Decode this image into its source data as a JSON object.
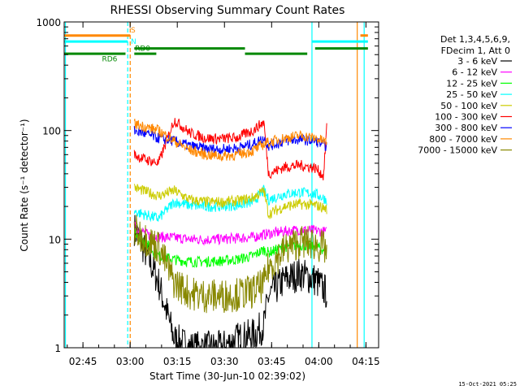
{
  "chart_data": {
    "type": "line",
    "title": "RHESSI Observing Summary Count Rates",
    "xlabel": "Start Time (30-Jun-10 02:39:02)",
    "ylabel": "Count Rate (s⁻¹ detector⁻¹)",
    "yscale": "log",
    "ylim": [
      1,
      1000
    ],
    "xlim_minutes": [
      0,
      100
    ],
    "x_ticks": [
      {
        "label": "02:45",
        "minute": 5.97
      },
      {
        "label": "03:00",
        "minute": 20.97
      },
      {
        "label": "03:15",
        "minute": 35.97
      },
      {
        "label": "03:30",
        "minute": 50.97
      },
      {
        "label": "03:45",
        "minute": 65.97
      },
      {
        "label": "04:00",
        "minute": 80.97
      },
      {
        "label": "04:15",
        "minute": 95.97
      }
    ],
    "y_ticks": [
      {
        "label": "1",
        "value": 1
      },
      {
        "label": "10",
        "value": 10
      },
      {
        "label": "100",
        "value": 100
      },
      {
        "label": "1000",
        "value": 1000
      }
    ],
    "legend": {
      "placement": "right",
      "header": [
        "Det 1,3,4,5,6,9,",
        "FDecim 1, Att 0"
      ]
    },
    "series": [
      {
        "name": "3 - 6 keV",
        "color": "#000000",
        "x": [
          22.3,
          27,
          30,
          35,
          40,
          45,
          50,
          55,
          60,
          63.5,
          65,
          70,
          75,
          80,
          83.5
        ],
        "y": [
          12.5,
          6.5,
          4.0,
          1.2,
          1.0,
          1.0,
          1.0,
          1.2,
          1.3,
          1.6,
          3.0,
          4.2,
          4.8,
          4.2,
          3.2
        ]
      },
      {
        "name": "6 - 12 keV",
        "color": "#ff00ff",
        "x": [
          22.3,
          27,
          30,
          35,
          40,
          45,
          50,
          55,
          60,
          63.5,
          65,
          70,
          75,
          80,
          83.5
        ],
        "y": [
          13.0,
          10.8,
          10.5,
          10.3,
          10.0,
          9.9,
          10.0,
          10.2,
          10.4,
          11.0,
          11.2,
          11.8,
          12.2,
          12.0,
          11.6
        ]
      },
      {
        "name": "12 - 25 keV",
        "color": "#00ff00",
        "x": [
          22.3,
          27,
          30,
          35,
          40,
          45,
          50,
          55,
          60,
          63.5,
          65,
          70,
          75,
          80,
          83.5
        ],
        "y": [
          12.0,
          8.5,
          7.0,
          6.5,
          6.2,
          6.2,
          6.3,
          6.5,
          7.0,
          8.0,
          7.5,
          8.5,
          8.8,
          8.6,
          7.8
        ]
      },
      {
        "name": "25 - 50 keV",
        "color": "#00ffff",
        "x": [
          22.3,
          25,
          30,
          35,
          40,
          45,
          50,
          55,
          60,
          63.5,
          65,
          70,
          75,
          80,
          83.5
        ],
        "y": [
          18.0,
          17.0,
          15.5,
          22.0,
          20.5,
          20.0,
          20.0,
          20.5,
          22.0,
          28.0,
          23.0,
          26.0,
          27.0,
          26.0,
          23.0
        ]
      },
      {
        "name": "50 - 100 keV",
        "color": "#cccc00",
        "x": [
          22.3,
          25,
          30,
          35,
          40,
          45,
          50,
          55,
          60,
          63.5,
          65,
          70,
          75,
          80,
          83.5
        ],
        "y": [
          30.0,
          28.0,
          25.0,
          28.0,
          23.0,
          22.0,
          22.0,
          22.5,
          24.0,
          28.0,
          17.0,
          20.0,
          21.0,
          20.5,
          19.0
        ]
      },
      {
        "name": "100 - 300 keV",
        "color": "#ff0000",
        "x": [
          22.3,
          25,
          30,
          35,
          40,
          45,
          50,
          55,
          60,
          63.5,
          65,
          70,
          75,
          80,
          82.5,
          83.5
        ],
        "y": [
          60.0,
          55.0,
          50.0,
          125.0,
          95.0,
          85.0,
          84.0,
          86.0,
          100.0,
          120.0,
          40.0,
          46.0,
          48.0,
          45.0,
          38.0,
          110.0
        ]
      },
      {
        "name": "300 - 800 keV",
        "color": "#0000ff",
        "x": [
          22.3,
          25,
          30,
          35,
          40,
          45,
          50,
          55,
          60,
          63.5,
          65,
          70,
          75,
          80,
          83.5
        ],
        "y": [
          100.0,
          95.0,
          85.0,
          80.0,
          72.0,
          68.0,
          67.0,
          69.0,
          75.0,
          85.0,
          72.0,
          80.0,
          83.0,
          80.0,
          72.0
        ]
      },
      {
        "name": "800 - 7000 keV",
        "color": "#ff8800",
        "x": [
          22.3,
          25,
          30,
          35,
          40,
          45,
          50,
          55,
          60,
          63.5,
          65,
          70,
          75,
          80,
          83.5
        ],
        "y": [
          115.0,
          110.0,
          100.0,
          80.0,
          66.0,
          60.0,
          58.0,
          60.0,
          65.0,
          75.0,
          78.0,
          85.0,
          90.0,
          85.0,
          78.0
        ]
      },
      {
        "name": "7000 - 15000 keV",
        "color": "#888800",
        "x": [
          22.3,
          25,
          30,
          35,
          40,
          45,
          50,
          55,
          60,
          63.5,
          65,
          70,
          75,
          80,
          83.5
        ],
        "y": [
          12.0,
          10.5,
          8.5,
          4.0,
          3.2,
          3.0,
          3.0,
          3.1,
          3.3,
          3.8,
          5.5,
          8.0,
          9.5,
          9.0,
          8.0
        ]
      }
    ],
    "vertical_lines": [
      {
        "color": "#00ffff",
        "minute": 0.4,
        "style": "solid"
      },
      {
        "color": "#00ffff",
        "minute": 20.2,
        "style": "dashed"
      },
      {
        "color": "#ff8800",
        "minute": 21.0,
        "style": "dashed"
      },
      {
        "color": "#00ffff",
        "minute": 78.8,
        "style": "solid"
      },
      {
        "color": "#ff8800",
        "minute": 93.2,
        "style": "solid"
      },
      {
        "color": "#00ffff",
        "minute": 95.4,
        "style": "solid"
      }
    ],
    "flags": [
      {
        "label": "S",
        "color": "#ff8800",
        "label_minute": 21.2,
        "label_value": 840,
        "segments": [
          [
            0,
            21
          ],
          [
            94.2,
            96.6
          ]
        ],
        "value": 750
      },
      {
        "label": "N",
        "color": "#00ffff",
        "label_minute": 21.2,
        "label_value": 660,
        "segments": [
          [
            0,
            20.2
          ],
          [
            78.8,
            96.6
          ]
        ],
        "value": 660
      },
      {
        "label": "RD0",
        "color": "#008800",
        "label_minute": 22.5,
        "label_value": 570,
        "segments": [
          [
            22.3,
            57.5
          ],
          [
            79.8,
            96.6
          ]
        ],
        "value": 570
      },
      {
        "label": "RD6",
        "color": "#008800",
        "label_minute": 12.0,
        "label_value": 455,
        "segments": [
          [
            0,
            19.5
          ],
          [
            22.3,
            29.3
          ],
          [
            57.5,
            77.3
          ]
        ],
        "value": 510
      }
    ],
    "footer_date": "15-Oct-2021 05:25"
  }
}
